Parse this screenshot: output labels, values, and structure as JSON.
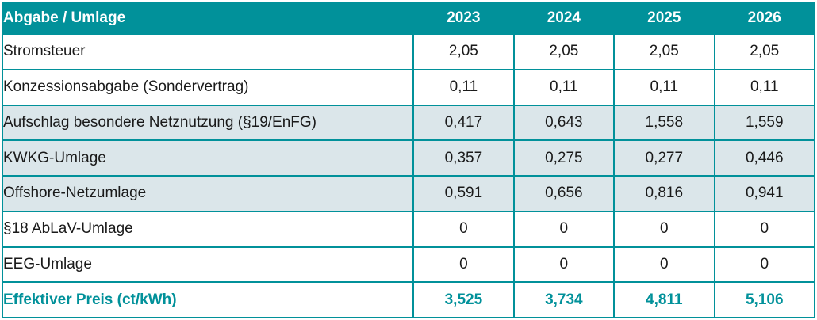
{
  "colors": {
    "teal": "#01919a",
    "highlight_row_bg": "#dbe6ea",
    "header_text": "#ffffff",
    "body_text": "#1a1a1a"
  },
  "table": {
    "header": {
      "label": "Abgabe / Umlage",
      "years": [
        "2023",
        "2024",
        "2025",
        "2026"
      ]
    },
    "rows": [
      {
        "label": "Stromsteuer",
        "values": [
          "2,05",
          "2,05",
          "2,05",
          "2,05"
        ],
        "highlight": false,
        "is_total": false
      },
      {
        "label": "Konzessionsabgabe (Sondervertrag)",
        "values": [
          "0,11",
          "0,11",
          "0,11",
          "0,11"
        ],
        "highlight": false,
        "is_total": false
      },
      {
        "label": "Aufschlag besondere Netznutzung (§19/EnFG)",
        "values": [
          "0,417",
          "0,643",
          "1,558",
          "1,559"
        ],
        "highlight": true,
        "is_total": false
      },
      {
        "label": "KWKG-Umlage",
        "values": [
          "0,357",
          "0,275",
          "0,277",
          "0,446"
        ],
        "highlight": true,
        "is_total": false
      },
      {
        "label": "Offshore-Netzumlage",
        "values": [
          "0,591",
          "0,656",
          "0,816",
          "0,941"
        ],
        "highlight": true,
        "is_total": false
      },
      {
        "label": "§18 AbLaV-Umlage",
        "values": [
          "0",
          "0",
          "0",
          "0"
        ],
        "highlight": false,
        "is_total": false
      },
      {
        "label": "EEG-Umlage",
        "values": [
          "0",
          "0",
          "0",
          "0"
        ],
        "highlight": false,
        "is_total": false
      },
      {
        "label": "Effektiver Preis (ct/kWh)",
        "values": [
          "3,525",
          "3,734",
          "4,811",
          "5,106"
        ],
        "highlight": false,
        "is_total": true
      }
    ]
  },
  "chart_data": {
    "type": "table",
    "title": "Abgabe / Umlage",
    "columns": [
      "Abgabe / Umlage",
      "2023",
      "2024",
      "2025",
      "2026"
    ],
    "row_labels": [
      "Stromsteuer",
      "Konzessionsabgabe (Sondervertrag)",
      "Aufschlag besondere Netznutzung (§19/EnFG)",
      "KWKG-Umlage",
      "Offshore-Netzumlage",
      "§18 AbLaV-Umlage",
      "EEG-Umlage",
      "Effektiver Preis (ct/kWh)"
    ],
    "series": [
      {
        "name": "2023",
        "values": [
          2.05,
          0.11,
          0.417,
          0.357,
          0.591,
          0,
          0
        ],
        "total": 3.525
      },
      {
        "name": "2024",
        "values": [
          2.05,
          0.11,
          0.643,
          0.275,
          0.656,
          0,
          0
        ],
        "total": 3.734
      },
      {
        "name": "2025",
        "values": [
          2.05,
          0.11,
          1.558,
          0.277,
          0.816,
          0,
          0
        ],
        "total": 4.811
      },
      {
        "name": "2026",
        "values": [
          2.05,
          0.11,
          1.559,
          0.446,
          0.941,
          0,
          0
        ],
        "total": 5.106
      }
    ],
    "value_unit": "ct/kWh",
    "decimal_separator": ","
  }
}
